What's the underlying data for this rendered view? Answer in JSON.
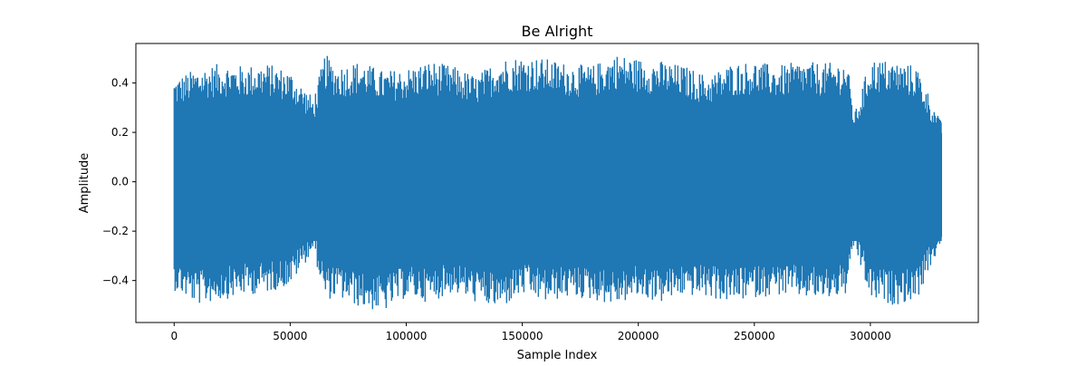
{
  "chart_data": {
    "type": "line",
    "title": "Be Alright",
    "xlabel": "Sample Index",
    "ylabel": "Amplitude",
    "xlim": [
      -16500,
      346500
    ],
    "ylim": [
      -0.57,
      0.56
    ],
    "xticks": [
      0,
      50000,
      100000,
      150000,
      200000,
      250000,
      300000
    ],
    "xtick_labels": [
      "0",
      "50000",
      "100000",
      "150000",
      "200000",
      "250000",
      "300000"
    ],
    "yticks": [
      -0.4,
      -0.2,
      0.0,
      0.2,
      0.4
    ],
    "ytick_labels": [
      "−0.4",
      "−0.2",
      "0.0",
      "0.2",
      "0.4"
    ],
    "grid": false,
    "series": [
      {
        "color": "#1f77b4",
        "description_points": {
          "x": [
            0,
            10000,
            20000,
            30000,
            40000,
            50000,
            60000,
            65000,
            70000,
            80000,
            90000,
            100000,
            110000,
            120000,
            130000,
            140000,
            150000,
            160000,
            170000,
            180000,
            190000,
            200000,
            210000,
            220000,
            230000,
            240000,
            250000,
            260000,
            270000,
            280000,
            290000,
            293000,
            300000,
            310000,
            320000,
            330000
          ],
          "max": [
            0.42,
            0.46,
            0.48,
            0.47,
            0.48,
            0.45,
            0.34,
            0.52,
            0.47,
            0.49,
            0.45,
            0.46,
            0.49,
            0.47,
            0.43,
            0.5,
            0.51,
            0.5,
            0.48,
            0.47,
            0.52,
            0.5,
            0.49,
            0.47,
            0.43,
            0.48,
            0.49,
            0.47,
            0.49,
            0.48,
            0.49,
            0.27,
            0.5,
            0.49,
            0.47,
            0.25
          ],
          "min": [
            -0.44,
            -0.5,
            -0.48,
            -0.46,
            -0.45,
            -0.42,
            -0.28,
            -0.48,
            -0.47,
            -0.51,
            -0.53,
            -0.47,
            -0.49,
            -0.45,
            -0.49,
            -0.52,
            -0.46,
            -0.49,
            -0.47,
            -0.48,
            -0.5,
            -0.47,
            -0.49,
            -0.46,
            -0.47,
            -0.49,
            -0.47,
            -0.46,
            -0.47,
            -0.48,
            -0.46,
            -0.26,
            -0.48,
            -0.5,
            -0.48,
            -0.26
          ]
        },
        "n_samples": 330750
      }
    ]
  }
}
